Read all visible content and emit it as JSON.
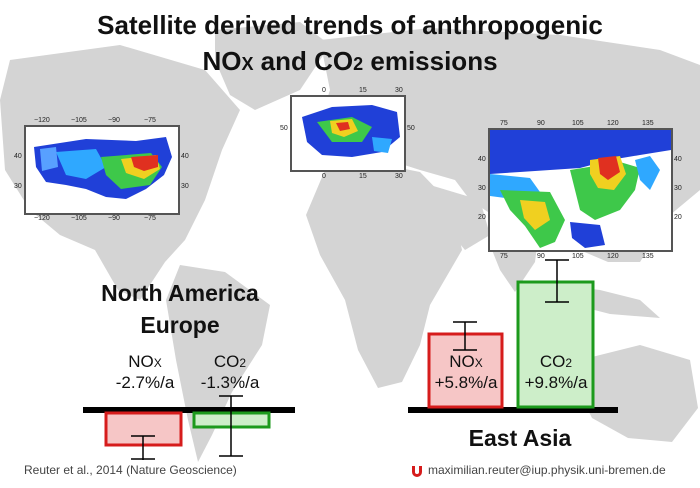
{
  "title": {
    "line1": "Satellite derived trends of anthropogenic",
    "line2_nox_base": "NO",
    "line2_nox_sub": "X",
    "line2_and": " and ",
    "line2_co2_base": "CO",
    "line2_co2_sub": "2",
    "line2_end": " emissions"
  },
  "maps": {
    "usa": {
      "top_ticks": [
        "−120",
        "−105",
        "−90",
        "−75"
      ],
      "bottom_ticks": [
        "−120",
        "−105",
        "−90",
        "−75"
      ],
      "left_ticks": [
        "40",
        "30"
      ],
      "right_ticks": [
        "40",
        "30"
      ]
    },
    "europe": {
      "top_ticks": [
        "0",
        "15",
        "30"
      ],
      "bottom_ticks": [
        "0",
        "15",
        "30"
      ],
      "left_ticks": [
        "50"
      ],
      "right_ticks": [
        "50"
      ]
    },
    "asia": {
      "top_ticks": [
        "75",
        "90",
        "105",
        "120",
        "135"
      ],
      "bottom_ticks": [
        "75",
        "90",
        "105",
        "120",
        "135"
      ],
      "left_ticks": [
        "40",
        "30",
        "20"
      ],
      "right_ticks": [
        "40",
        "30",
        "20"
      ]
    }
  },
  "regions": {
    "na_line1": "North America",
    "na_line2": "Europe",
    "ea": "East Asia"
  },
  "labels": {
    "nox": "NO",
    "nox_sub": "X",
    "co2": "CO",
    "co2_sub": "2",
    "west_nox_trend": "-2.7%/a",
    "west_co2_trend": "-1.3%/a",
    "east_nox_trend": "+5.8%/a",
    "east_co2_trend": "+9.8%/a"
  },
  "colors": {
    "nox_fill": "#f6c6c6",
    "nox_stroke": "#d61c1c",
    "co2_fill": "#cdeec9",
    "co2_stroke": "#1c9a1c",
    "continent": "#d4d4d4"
  },
  "footer": {
    "citation": "Reuter et al., 2014 (Nature Geoscience)",
    "email": "maximilian.reuter@iup.physik.uni-bremen.de"
  }
}
